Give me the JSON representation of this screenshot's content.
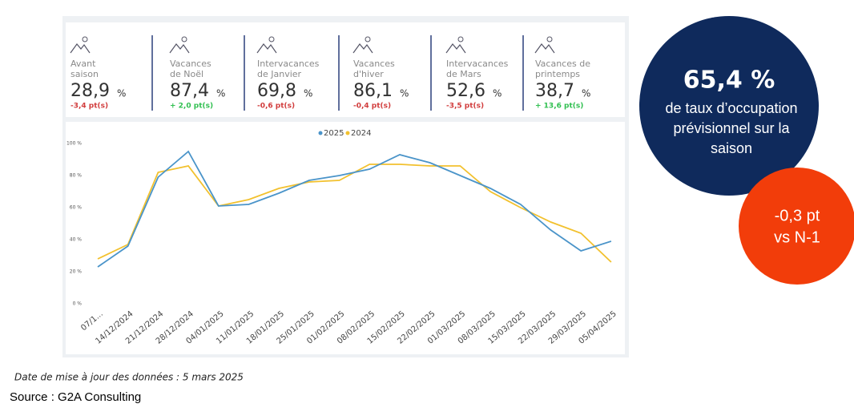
{
  "kpis": [
    {
      "label": [
        "Avant",
        "saison"
      ],
      "value": "28,9",
      "unit": "%",
      "delta": "-3,4 pt(s)",
      "delta_color": "#d13b3b"
    },
    {
      "label": [
        "Vacances",
        "de Noël"
      ],
      "value": "87,4",
      "unit": "%",
      "delta": "+ 2,0 pt(s)",
      "delta_color": "#2fbf4f"
    },
    {
      "label": [
        "Intervacances",
        "de Janvier"
      ],
      "value": "69,8",
      "unit": "%",
      "delta": "-0,6 pt(s)",
      "delta_color": "#d13b3b"
    },
    {
      "label": [
        "Vacances",
        "d'hiver"
      ],
      "value": "86,1",
      "unit": "%",
      "delta": "-0,4 pt(s)",
      "delta_color": "#d13b3b"
    },
    {
      "label": [
        "Intervacances",
        "de Mars"
      ],
      "value": "52,6",
      "unit": "%",
      "delta": "-3,5 pt(s)",
      "delta_color": "#d13b3b"
    },
    {
      "label": [
        "Vacances de",
        "printemps"
      ],
      "value": "38,7",
      "unit": "%",
      "delta": "+ 13,6 pt(s)",
      "delta_color": "#2fbf4f"
    }
  ],
  "chart_data": {
    "type": "line",
    "categories": [
      "07/1...",
      "14/12/2024",
      "21/12/2024",
      "28/12/2024",
      "04/01/2025",
      "11/01/2025",
      "18/01/2025",
      "25/01/2025",
      "01/02/2025",
      "08/02/2025",
      "15/02/2025",
      "22/02/2025",
      "01/03/2025",
      "08/03/2025",
      "15/03/2025",
      "22/03/2025",
      "29/03/2025",
      "05/04/2025"
    ],
    "series": [
      {
        "name": "2025",
        "color": "#4a94c9",
        "values": [
          23,
          36,
          79,
          95,
          61,
          62,
          69,
          77,
          80,
          84,
          93,
          88,
          80,
          72,
          62,
          46,
          33,
          39
        ]
      },
      {
        "name": "2024",
        "color": "#f2c12e",
        "values": [
          28,
          37,
          82,
          86,
          61,
          65,
          72,
          76,
          77,
          87,
          87,
          86,
          86,
          70,
          60,
          51,
          44,
          26
        ]
      }
    ],
    "ylim": [
      0,
      100
    ],
    "yticks": [
      {
        "value": 0,
        "label": "0 %"
      },
      {
        "value": 20,
        "label": "20 %"
      },
      {
        "value": 40,
        "label": "40 %"
      },
      {
        "value": 60,
        "label": "60 %"
      },
      {
        "value": 80,
        "label": "80 %"
      },
      {
        "value": 100,
        "label": "100 %"
      }
    ],
    "legend": "top"
  },
  "highlight": {
    "value": "65,4 %",
    "text": [
      "de taux d’occupation",
      "prévisionnel sur la",
      "saison"
    ]
  },
  "delta": {
    "text": [
      "-0,3 pt",
      "vs N-1"
    ]
  },
  "update_note": "Date de mise à jour des données : 5 mars 2025",
  "source": "Source : G2A Consulting"
}
